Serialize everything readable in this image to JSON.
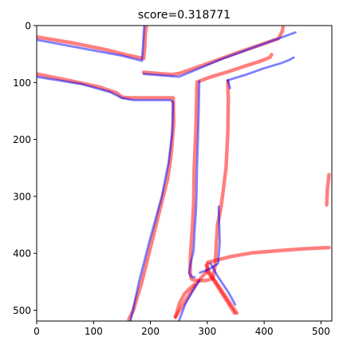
{
  "chart_data": {
    "type": "line",
    "title": "score=0.318771",
    "xlabel": "",
    "ylabel": "",
    "xlim": [
      0,
      519
    ],
    "ylim": [
      519,
      0
    ],
    "x_ticks": [
      0,
      100,
      200,
      300,
      400,
      500
    ],
    "y_ticks": [
      0,
      100,
      200,
      300,
      400,
      500
    ],
    "grid": false,
    "legend": "none",
    "colors": {
      "series_a": "#ff0000",
      "series_b": "#0000ff",
      "axes": "#000000",
      "background": "#ffffff"
    },
    "series": [
      {
        "color": "#ff0000",
        "opacity": 0.5,
        "width": 4.5,
        "paths": [
          [
            [
              0,
              20
            ],
            [
              60,
              30
            ],
            [
              120,
              42
            ],
            [
              160,
              52
            ],
            [
              188,
              58
            ],
            [
              190,
              40
            ],
            [
              191,
              15
            ],
            [
              193,
              0
            ]
          ],
          [
            [
              0,
              85
            ],
            [
              60,
              97
            ],
            [
              110,
              108
            ],
            [
              140,
              118
            ],
            [
              151,
              126
            ],
            [
              168,
              127
            ],
            [
              200,
              127
            ],
            [
              220,
              127
            ],
            [
              240,
              127
            ],
            [
              241,
              170
            ],
            [
              237,
              220
            ],
            [
              234,
              245
            ],
            [
              230,
              270
            ],
            [
              220,
              310
            ],
            [
              205,
              370
            ],
            [
              185,
              450
            ],
            [
              170,
              500
            ],
            [
              162,
              516
            ]
          ],
          [
            [
              188,
              82
            ],
            [
              238,
              86
            ],
            [
              251,
              84
            ],
            [
              300,
              67
            ],
            [
              352,
              48
            ],
            [
              425,
              23
            ],
            [
              432,
              10
            ],
            [
              433,
              3
            ]
          ],
          [
            [
              336,
              98
            ],
            [
              337,
              130
            ],
            [
              336,
              190
            ],
            [
              333,
              250
            ],
            [
              328,
              290
            ],
            [
              324,
              320
            ],
            [
              318,
              350
            ],
            [
              316,
              382
            ],
            [
              314,
              420
            ],
            [
              310,
              444
            ],
            [
              297,
              448
            ],
            [
              278,
              448
            ],
            [
              272,
              445
            ],
            [
              270,
              435
            ],
            [
              270,
              410
            ],
            [
              272,
              380
            ],
            [
              274,
              350
            ],
            [
              276,
              313
            ],
            [
              277,
              250
            ],
            [
              280,
              180
            ],
            [
              282,
              99
            ],
            [
              307,
              90
            ],
            [
              340,
              80
            ],
            [
              370,
              70
            ],
            [
              395,
              62
            ],
            [
              410,
              56
            ],
            [
              413,
              51
            ]
          ],
          [
            [
              301,
              416
            ],
            [
              340,
              406
            ],
            [
              380,
              399
            ],
            [
              430,
              395
            ],
            [
              470,
              392
            ],
            [
              514,
              390
            ]
          ],
          [
            [
              244,
              512
            ],
            [
              264,
              479
            ],
            [
              285,
              448
            ],
            [
              299,
              432
            ],
            [
              301,
              418
            ]
          ],
          [
            [
              277,
              455
            ],
            [
              268,
              463
            ],
            [
              260,
              471
            ],
            [
              251,
              488
            ],
            [
              244,
              512
            ]
          ],
          [
            [
              298,
              421
            ],
            [
              311,
              447
            ],
            [
              330,
              477
            ],
            [
              348,
              505
            ]
          ],
          [
            [
              299,
              432
            ],
            [
              315,
              450
            ],
            [
              335,
              480
            ],
            [
              352,
              505
            ]
          ],
          [
            [
              514,
              262
            ],
            [
              511,
              290
            ],
            [
              510,
              315
            ]
          ]
        ]
      },
      {
        "color": "#0000ff",
        "opacity": 0.5,
        "width": 2.8,
        "paths": [
          [
            [
              0,
              25
            ],
            [
              80,
              40
            ],
            [
              150,
              53
            ],
            [
              185,
              62
            ],
            [
              187,
              35
            ],
            [
              189,
              0
            ]
          ],
          [
            [
              0,
              90
            ],
            [
              80,
              103
            ],
            [
              130,
              117
            ],
            [
              149,
              127
            ],
            [
              170,
              131
            ],
            [
              215,
              131
            ],
            [
              236,
              131
            ],
            [
              240,
              135
            ],
            [
              238,
              190
            ],
            [
              232,
              240
            ],
            [
              220,
              300
            ],
            [
              198,
              380
            ],
            [
              180,
              450
            ],
            [
              165,
              519
            ]
          ],
          [
            [
              188,
              85
            ],
            [
              250,
              90
            ],
            [
              330,
              57
            ],
            [
              455,
              12
            ]
          ],
          [
            [
              286,
              98
            ],
            [
              285,
              150
            ],
            [
              282,
              250
            ],
            [
              281,
              300
            ],
            [
              280,
              326
            ],
            [
              278,
              355
            ],
            [
              276,
              395
            ],
            [
              270,
              421
            ],
            [
              268,
              434
            ],
            [
              271,
              440
            ],
            [
              275,
              442
            ],
            [
              278,
              442
            ]
          ],
          [
            [
              336,
              96
            ],
            [
              340,
              110
            ]
          ],
          [
            [
              336,
              96
            ],
            [
              366,
              87
            ],
            [
              400,
              75
            ],
            [
              430,
              66
            ],
            [
              445,
              60
            ],
            [
              452,
              56
            ]
          ],
          [
            [
              306,
              418
            ],
            [
              318,
              440
            ],
            [
              338,
              470
            ],
            [
              349,
              490
            ]
          ],
          [
            [
              286,
              448
            ],
            [
              275,
              465
            ],
            [
              261,
              490
            ],
            [
              250,
              519
            ]
          ],
          [
            [
              320,
              318
            ],
            [
              322,
              380
            ],
            [
              319,
              418
            ],
            [
              303,
              428
            ],
            [
              287,
              434
            ]
          ]
        ]
      }
    ]
  }
}
